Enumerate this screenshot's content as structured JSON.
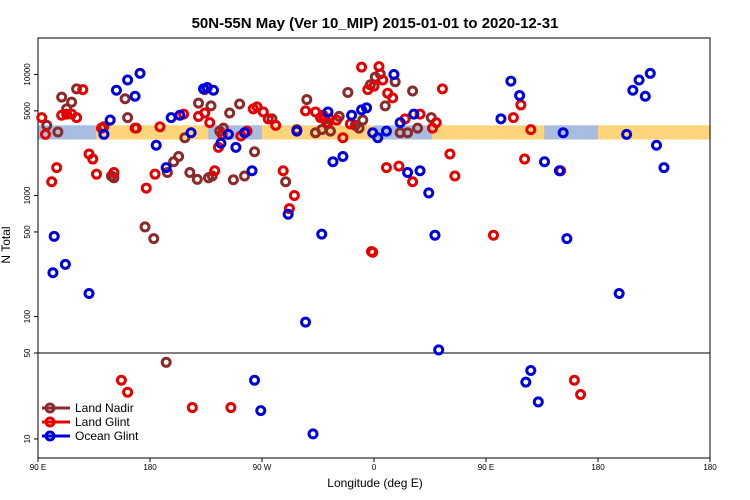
{
  "chart_data": {
    "type": "scatter",
    "title": "50N-55N May (Ver 10_MIP)   2015-01-01 to 2020-12-31",
    "xlabel": "Longitude (deg E)",
    "ylabel": "N Total",
    "x_scale": "linear",
    "y_scale": "log",
    "xlim": [
      90,
      630
    ],
    "upper_ylim": [
      50,
      20000
    ],
    "lower_ylim": [
      7,
      50
    ],
    "x_ticks": [
      {
        "value": 90,
        "label": "90 E"
      },
      {
        "value": 180,
        "label": "180"
      },
      {
        "value": 270,
        "label": "90 W"
      },
      {
        "value": 360,
        "label": "0"
      },
      {
        "value": 450,
        "label": "90 E"
      },
      {
        "value": 540,
        "label": "180"
      }
    ],
    "upper_y_ticks": [
      {
        "value": 100,
        "label": "100"
      },
      {
        "value": 500,
        "label": "500"
      },
      {
        "value": 1000,
        "label": "1000"
      },
      {
        "value": 5000,
        "label": "5000"
      },
      {
        "value": 10000,
        "label": "10000"
      }
    ],
    "lower_y_ticks": [
      {
        "value": 10,
        "label": "10"
      },
      {
        "value": 50,
        "label": "50"
      }
    ],
    "band": {
      "ymin": 2900,
      "ymax": 3800,
      "xmin": 90,
      "xmax": 630,
      "colors": [
        "#ffd47a",
        "#a8bde0"
      ]
    },
    "legend_position": "bottom-left",
    "series": [
      {
        "name": "Land Nadir",
        "color": "#8b2a2a",
        "points": [
          [
            97,
            3800
          ],
          [
            106,
            3350
          ],
          [
            109,
            6500
          ],
          [
            113,
            5200
          ],
          [
            117,
            5900
          ],
          [
            121,
            7600
          ],
          [
            143,
            3700
          ],
          [
            149,
            1450
          ],
          [
            193,
            42
          ],
          [
            219,
            5800
          ],
          [
            224,
            7500
          ],
          [
            229,
            5500
          ],
          [
            239,
            3600
          ],
          [
            244,
            4800
          ],
          [
            247,
            1350
          ],
          [
            252,
            5700
          ],
          [
            256,
            1450
          ],
          [
            264,
            2300
          ],
          [
            298,
            3500
          ],
          [
            306,
            6200
          ],
          [
            325,
            3400
          ],
          [
            332,
            4500
          ],
          [
            339,
            7100
          ],
          [
            345,
            3800
          ],
          [
            351,
            4200
          ],
          [
            357,
            8200
          ],
          [
            361,
            9500
          ],
          [
            365,
            10100
          ],
          [
            369,
            5500
          ],
          [
            377,
            8700
          ],
          [
            381,
            3300
          ],
          [
            387,
            3300
          ],
          [
            391,
            7300
          ],
          [
            395,
            3600
          ],
          [
            406,
            4400
          ],
          [
            151,
            1400
          ],
          [
            160,
            6300
          ],
          [
            162,
            4400
          ],
          [
            169,
            3600
          ],
          [
            176,
            550
          ],
          [
            183,
            440
          ],
          [
            194,
            1550
          ],
          [
            199,
            1900
          ],
          [
            203,
            2100
          ],
          [
            208,
            3000
          ],
          [
            212,
            1550
          ],
          [
            218,
            1360
          ],
          [
            227,
            1400
          ],
          [
            230,
            1450
          ],
          [
            236,
            3400
          ],
          [
            278,
            4300
          ],
          [
            289,
            1300
          ],
          [
            313,
            3300
          ],
          [
            318,
            3500
          ],
          [
            320,
            4300
          ],
          [
            322,
            4000
          ],
          [
            324,
            4300
          ],
          [
            348,
            3600
          ]
        ]
      },
      {
        "name": "Land Glint",
        "color": "#e60000",
        "points": [
          [
            93,
            4400
          ],
          [
            96,
            3200
          ],
          [
            101,
            1300
          ],
          [
            105,
            1700
          ],
          [
            109,
            4600
          ],
          [
            113,
            4700
          ],
          [
            117,
            4700
          ],
          [
            121,
            4400
          ],
          [
            126,
            7500
          ],
          [
            131,
            2200
          ],
          [
            134,
            2000
          ],
          [
            137,
            1500
          ],
          [
            141,
            3600
          ],
          [
            151,
            1550
          ],
          [
            157,
            30
          ],
          [
            162,
            24
          ],
          [
            168,
            3600
          ],
          [
            177,
            1150
          ],
          [
            184,
            1500
          ],
          [
            188,
            3700
          ],
          [
            207,
            4700
          ],
          [
            214,
            18
          ],
          [
            219,
            4500
          ],
          [
            224,
            4800
          ],
          [
            228,
            4000
          ],
          [
            232,
            1600
          ],
          [
            235,
            2500
          ],
          [
            238,
            3200
          ],
          [
            245,
            18
          ],
          [
            253,
            3100
          ],
          [
            258,
            3400
          ],
          [
            263,
            5200
          ],
          [
            266,
            5400
          ],
          [
            271,
            4900
          ],
          [
            275,
            4300
          ],
          [
            281,
            3800
          ],
          [
            287,
            1600
          ],
          [
            292,
            780
          ],
          [
            296,
            1000
          ],
          [
            305,
            5000
          ],
          [
            313,
            4900
          ],
          [
            317,
            4400
          ],
          [
            319,
            4600
          ],
          [
            323,
            4000
          ],
          [
            330,
            4200
          ],
          [
            335,
            3000
          ],
          [
            341,
            3900
          ],
          [
            350,
            11500
          ],
          [
            355,
            7500
          ],
          [
            360,
            8000
          ],
          [
            364,
            11600
          ],
          [
            367,
            9000
          ],
          [
            371,
            7000
          ],
          [
            375,
            6400
          ],
          [
            380,
            1750
          ],
          [
            385,
            4300
          ],
          [
            391,
            1300
          ],
          [
            397,
            4700
          ],
          [
            407,
            3600
          ],
          [
            410,
            4000
          ],
          [
            415,
            7600
          ],
          [
            421,
            2200
          ],
          [
            425,
            1450
          ],
          [
            456,
            470
          ],
          [
            472,
            4400
          ],
          [
            478,
            5600
          ],
          [
            481,
            2000
          ],
          [
            486,
            3500
          ],
          [
            510,
            1600
          ],
          [
            521,
            30
          ],
          [
            526,
            23
          ],
          [
            358,
            345
          ],
          [
            359,
            340
          ],
          [
            370,
            1700
          ]
        ]
      },
      {
        "name": "Ocean Glint",
        "color": "#0000dd",
        "points": [
          [
            102,
            230
          ],
          [
            103,
            460
          ],
          [
            112,
            270
          ],
          [
            131,
            155
          ],
          [
            143,
            3200
          ],
          [
            148,
            4200
          ],
          [
            153,
            7400
          ],
          [
            162,
            9000
          ],
          [
            168,
            6600
          ],
          [
            172,
            10200
          ],
          [
            185,
            2600
          ],
          [
            193,
            1700
          ],
          [
            197,
            4400
          ],
          [
            204,
            4600
          ],
          [
            213,
            3300
          ],
          [
            223,
            7600
          ],
          [
            226,
            7800
          ],
          [
            231,
            7400
          ],
          [
            237,
            2700
          ],
          [
            243,
            3200
          ],
          [
            249,
            2500
          ],
          [
            256,
            3300
          ],
          [
            262,
            1600
          ],
          [
            264,
            30
          ],
          [
            269,
            17
          ],
          [
            291,
            700
          ],
          [
            298,
            3400
          ],
          [
            305,
            90
          ],
          [
            311,
            11
          ],
          [
            318,
            480
          ],
          [
            323,
            4900
          ],
          [
            327,
            1900
          ],
          [
            335,
            2100
          ],
          [
            342,
            4600
          ],
          [
            350,
            5100
          ],
          [
            354,
            5300
          ],
          [
            359,
            3300
          ],
          [
            363,
            3000
          ],
          [
            370,
            3400
          ],
          [
            376,
            10000
          ],
          [
            381,
            4000
          ],
          [
            387,
            1550
          ],
          [
            392,
            4700
          ],
          [
            397,
            1600
          ],
          [
            404,
            1050
          ],
          [
            409,
            470
          ],
          [
            412,
            53
          ],
          [
            462,
            4300
          ],
          [
            470,
            8800
          ],
          [
            477,
            6700
          ],
          [
            482,
            29
          ],
          [
            486,
            36
          ],
          [
            492,
            20
          ],
          [
            497,
            1900
          ],
          [
            509,
            1600
          ],
          [
            512,
            3300
          ],
          [
            515,
            440
          ],
          [
            557,
            155
          ],
          [
            563,
            3200
          ],
          [
            568,
            7400
          ],
          [
            573,
            9000
          ],
          [
            578,
            6600
          ],
          [
            582,
            10200
          ],
          [
            587,
            2600
          ],
          [
            593,
            1700
          ]
        ]
      }
    ]
  }
}
